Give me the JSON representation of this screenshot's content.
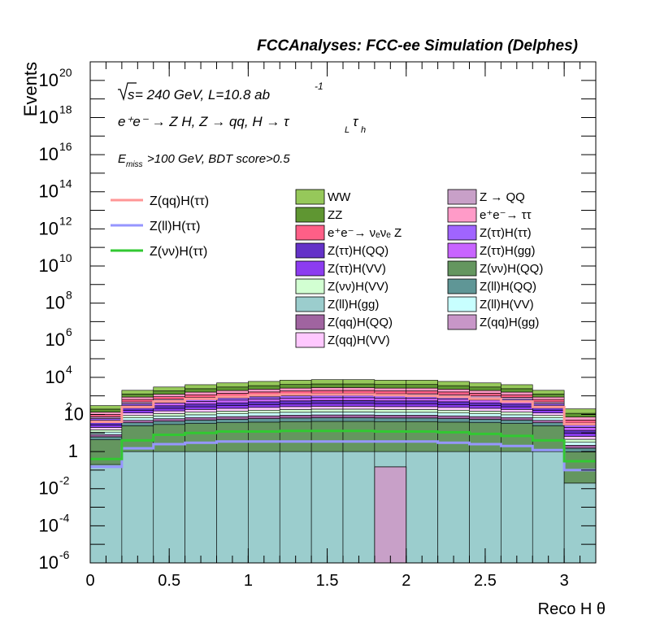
{
  "header": {
    "title": "FCCAnalyses: FCC-ee Simulation (Delphes)",
    "line1_sqrt": "s",
    "line1_rest": " = 240 GeV, L=10.8 ab",
    "line1_exp": "-1",
    "line2": "e⁺e⁻ → Z H, Z → qq, H → τ",
    "line2_sub1": "L",
    "line2_tau": "τ",
    "line2_sub2": "h",
    "line3_E": "E",
    "line3_sub": "miss",
    "line3_rest": ">100 GeV, BDT score>0.5"
  },
  "chart_data": {
    "type": "area",
    "xlabel": "Reco H θ",
    "ylabel": "Events",
    "xlim": [
      0,
      3.2
    ],
    "ylim": [
      1e-06,
      1e+21
    ],
    "log_y": true,
    "xticks": [
      "0",
      "0.5",
      "1",
      "1.5",
      "2",
      "2.5",
      "3"
    ],
    "xtick_values": [
      0,
      0.5,
      1,
      1.5,
      2,
      2.5,
      3
    ],
    "bin_edges": [
      0,
      0.2,
      0.4,
      0.6,
      0.8,
      1.0,
      1.2,
      1.4,
      1.6,
      1.8,
      2.0,
      2.2,
      2.4,
      2.6,
      2.8,
      3.0,
      3.2
    ],
    "stack_legend": [
      {
        "name": "WW",
        "color": "#96c85a"
      },
      {
        "name": "Z → QQ",
        "color": "#c8a0c8"
      },
      {
        "name": "ZZ",
        "color": "#5f9632"
      },
      {
        "name": "e⁺e⁻→ ττ",
        "color": "#ff9bc8"
      },
      {
        "name": "e⁺e⁻→ νₑνₑ Z",
        "color": "#ff5f87"
      },
      {
        "name": "Z(ττ)H(ττ)",
        "color": "#a064ff"
      },
      {
        "name": "Z(ττ)H(QQ)",
        "color": "#6432c8"
      },
      {
        "name": "Z(ττ)H(gg)",
        "color": "#c864ff"
      },
      {
        "name": "Z(ττ)H(VV)",
        "color": "#8c3cf0"
      },
      {
        "name": "Z(νν)H(QQ)",
        "color": "#64965f"
      },
      {
        "name": "Z(νν)H(VV)",
        "color": "#d2ffd2"
      },
      {
        "name": "Z(ll)H(QQ)",
        "color": "#5f9696"
      },
      {
        "name": "Z(ll)H(gg)",
        "color": "#9bcdcd"
      },
      {
        "name": "Z(ll)H(VV)",
        "color": "#c8ffff"
      },
      {
        "name": "Z(qq)H(QQ)",
        "color": "#a064a0"
      },
      {
        "name": "Z(qq)H(gg)",
        "color": "#c896c8"
      },
      {
        "name": "Z(qq)H(VV)",
        "color": "#ffc8ff"
      }
    ],
    "stack_totals": [
      300,
      2000,
      3000,
      4000,
      5000,
      6000,
      7000,
      7500,
      7500,
      7000,
      7000,
      6000,
      5000,
      4000,
      2000,
      200
    ],
    "background_floor": [
      0.2,
      1,
      1,
      1,
      1,
      1,
      1,
      1,
      1,
      1,
      1,
      1,
      1,
      1,
      1,
      0.02
    ],
    "isolated_bin": {
      "name": "Z → QQ",
      "x": [
        1.8,
        2.0
      ],
      "value": 0.15
    },
    "series": [
      {
        "name": "Z(qq)H(ττ)",
        "color": "#ff9696",
        "values": [
          40,
          250,
          500,
          700,
          900,
          1100,
          1200,
          1200,
          1200,
          1100,
          1000,
          900,
          700,
          500,
          250,
          30
        ]
      },
      {
        "name": "Z(ll)H(ττ)",
        "color": "#9696ff",
        "values": [
          0.15,
          1.5,
          2.5,
          3.0,
          3.5,
          3.5,
          3.5,
          3.5,
          3.5,
          3.5,
          3.5,
          3.0,
          2.5,
          2.0,
          1.2,
          0.1
        ]
      },
      {
        "name": "Z(νν)H(ττ)",
        "color": "#32c832",
        "values": [
          0.4,
          4,
          8,
          10,
          12,
          12,
          13,
          13,
          13,
          12,
          12,
          11,
          9,
          7,
          4,
          0.3
        ]
      }
    ]
  }
}
